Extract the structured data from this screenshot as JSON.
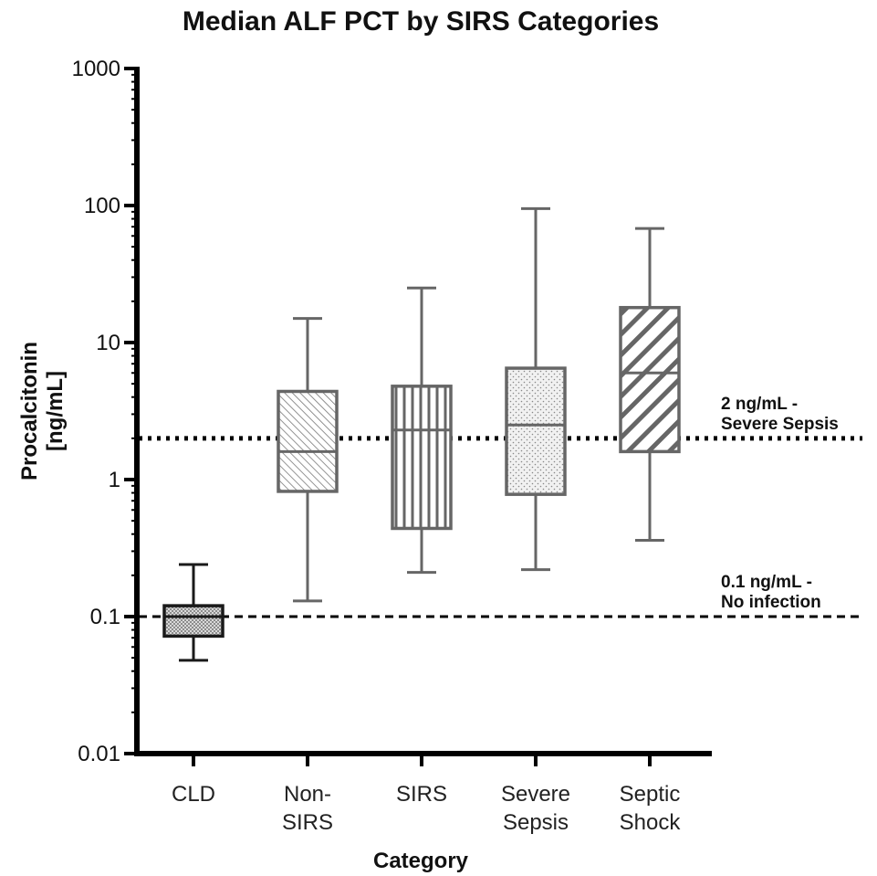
{
  "chart_data": {
    "type": "box",
    "title": "Median ALF PCT by SIRS Categories",
    "xlabel": "Category",
    "ylabel_lines": [
      "Procalcitonin",
      "[ng/mL]"
    ],
    "y_scale": "log",
    "ylim": [
      0.01,
      1000
    ],
    "y_ticks": [
      {
        "value": 0.01,
        "label": "0.01"
      },
      {
        "value": 0.1,
        "label": "0.1"
      },
      {
        "value": 1,
        "label": "1"
      },
      {
        "value": 10,
        "label": "10"
      },
      {
        "value": 100,
        "label": "100"
      },
      {
        "value": 1000,
        "label": "1000"
      }
    ],
    "categories": [
      {
        "label_lines": [
          "CLD"
        ],
        "whisker_low": 0.048,
        "q1": 0.072,
        "median": 0.1,
        "q3": 0.12,
        "whisker_high": 0.24,
        "pattern": "dots-dense",
        "color": "#1a1a1a"
      },
      {
        "label_lines": [
          "Non-",
          "SIRS"
        ],
        "whisker_low": 0.13,
        "q1": 0.82,
        "median": 1.6,
        "q3": 4.4,
        "whisker_high": 15,
        "pattern": "diag-fine",
        "color": "#666666"
      },
      {
        "label_lines": [
          "SIRS"
        ],
        "whisker_low": 0.21,
        "q1": 0.44,
        "median": 2.3,
        "q3": 4.8,
        "whisker_high": 25,
        "pattern": "vertical",
        "color": "#666666"
      },
      {
        "label_lines": [
          "Severe",
          "Sepsis"
        ],
        "whisker_low": 0.22,
        "q1": 0.78,
        "median": 2.5,
        "q3": 6.5,
        "whisker_high": 95,
        "pattern": "dots-sparse",
        "color": "#666666"
      },
      {
        "label_lines": [
          "Septic",
          "Shock"
        ],
        "whisker_low": 0.36,
        "q1": 1.6,
        "median": 6.0,
        "q3": 18,
        "whisker_high": 68,
        "pattern": "diag-wide",
        "color": "#666666"
      }
    ],
    "reference_lines": [
      {
        "value": 2,
        "style": "dotted",
        "label_lines": [
          "2 ng/mL -",
          "Severe Sepsis"
        ]
      },
      {
        "value": 0.1,
        "style": "dashed",
        "label_lines": [
          "0.1 ng/mL -",
          "No infection"
        ]
      }
    ],
    "grid": false,
    "legend": "none"
  }
}
